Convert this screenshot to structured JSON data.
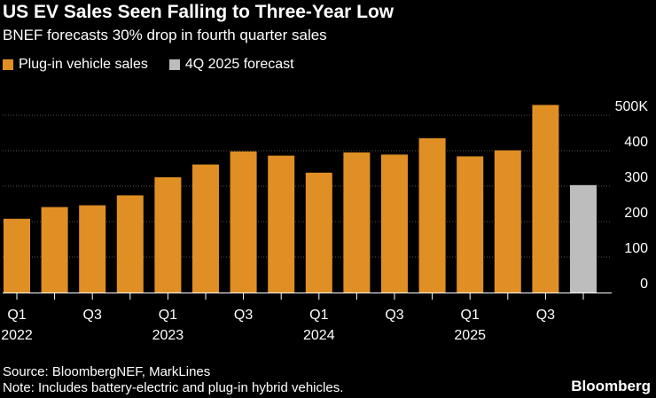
{
  "chart_data": {
    "type": "bar",
    "title": "US EV Sales Seen Falling to Three-Year Low",
    "subtitle": "BNEF forecasts 30% drop in fourth quarter sales",
    "legend": [
      {
        "label": "Plug-in vehicle sales",
        "color": "#E08F24"
      },
      {
        "label": "4Q 2025 forecast",
        "color": "#BDBDBD"
      }
    ],
    "categories": [
      "1Q 2022",
      "2Q 2022",
      "3Q 2022",
      "4Q 2022",
      "1Q 2023",
      "2Q 2023",
      "3Q 2023",
      "4Q 2023",
      "1Q 2024",
      "2Q 2024",
      "3Q 2024",
      "4Q 2024",
      "1Q 2025",
      "2Q 2025",
      "3Q 2025",
      "4Q 2025"
    ],
    "series": [
      {
        "name": "Plug-in vehicle sales",
        "color": "#E08F24",
        "values": [
          208,
          241,
          246,
          274,
          325,
          361,
          398,
          386,
          338,
          395,
          389,
          435,
          384,
          401,
          529,
          null
        ]
      },
      {
        "name": "4Q 2025 forecast",
        "color": "#BDBDBD",
        "values": [
          null,
          null,
          null,
          null,
          null,
          null,
          null,
          null,
          null,
          null,
          null,
          null,
          null,
          null,
          null,
          303
        ]
      }
    ],
    "x_tick_labels": [
      {
        "index": 0,
        "quarter": "Q1",
        "year": "2022"
      },
      {
        "index": 2,
        "quarter": "Q3",
        "year": ""
      },
      {
        "index": 4,
        "quarter": "Q1",
        "year": "2023"
      },
      {
        "index": 6,
        "quarter": "Q3",
        "year": ""
      },
      {
        "index": 8,
        "quarter": "Q1",
        "year": "2024"
      },
      {
        "index": 10,
        "quarter": "Q3",
        "year": ""
      },
      {
        "index": 12,
        "quarter": "Q1",
        "year": "2025"
      },
      {
        "index": 14,
        "quarter": "Q3",
        "year": ""
      }
    ],
    "y_ticks": [
      0,
      100,
      200,
      300,
      400,
      500
    ],
    "y_tick_labels": [
      "0",
      "100",
      "200",
      "300",
      "400",
      "500K"
    ],
    "ylim": [
      0,
      540
    ],
    "xlabel": "",
    "ylabel": "",
    "grid": true,
    "y_axis_side": "right"
  },
  "footer": {
    "source": "Source: BloombergNEF, MarkLines",
    "note": "Note: Includes battery-electric and plug-in hybrid vehicles.",
    "brand": "Bloomberg"
  }
}
